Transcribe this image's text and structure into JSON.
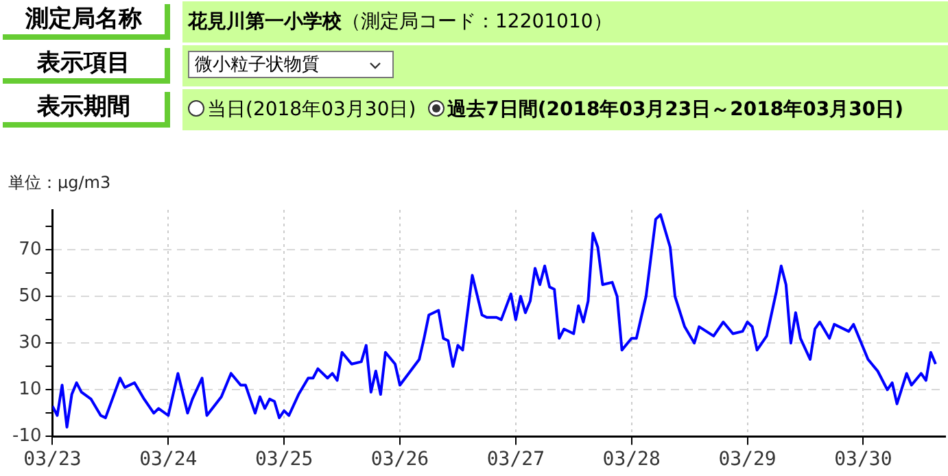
{
  "chart_data": {
    "type": "line",
    "title": "花見川第一小学校",
    "subtitle": "（測定局コード：12201010）",
    "annotations": [
      "測定局名称",
      "表示項目",
      "微小粒子状物質",
      "表示期間",
      "当日(2018年03月30日)",
      "過去7日間(2018年03月23日～2018年03月30日)"
    ],
    "ylabel": "単位：μg/m3",
    "x": [
      "2018-03-23T00:00",
      "2018-03-23T01:00",
      "2018-03-23T02:00",
      "2018-03-23T03:00",
      "2018-03-23T04:00",
      "2018-03-23T05:00",
      "2018-03-23T06:00",
      "2018-03-23T08:00",
      "2018-03-23T10:00",
      "2018-03-23T11:00",
      "2018-03-23T14:00",
      "2018-03-23T15:00",
      "2018-03-23T17:00",
      "2018-03-23T19:00",
      "2018-03-23T21:00",
      "2018-03-23T22:00",
      "2018-03-24T00:00",
      "2018-03-24T02:00",
      "2018-03-24T04:00",
      "2018-03-24T05:00",
      "2018-03-24T07:00",
      "2018-03-24T08:00",
      "2018-03-24T11:00",
      "2018-03-24T13:00",
      "2018-03-24T15:00",
      "2018-03-24T16:00",
      "2018-03-24T18:00",
      "2018-03-24T19:00",
      "2018-03-24T20:00",
      "2018-03-24T21:00",
      "2018-03-24T22:00",
      "2018-03-24T23:00",
      "2018-03-25T00:00",
      "2018-03-25T01:00",
      "2018-03-25T03:00",
      "2018-03-25T05:00",
      "2018-03-25T06:00",
      "2018-03-25T07:00",
      "2018-03-25T09:00",
      "2018-03-25T10:00",
      "2018-03-25T11:00",
      "2018-03-25T12:00",
      "2018-03-25T14:00",
      "2018-03-25T16:00",
      "2018-03-25T17:00",
      "2018-03-25T18:00",
      "2018-03-25T19:00",
      "2018-03-25T20:00",
      "2018-03-25T21:00",
      "2018-03-25T23:00",
      "2018-03-26T00:00",
      "2018-03-26T04:00",
      "2018-03-26T05:00",
      "2018-03-26T06:00",
      "2018-03-26T08:00",
      "2018-03-26T09:00",
      "2018-03-26T10:00",
      "2018-03-26T11:00",
      "2018-03-26T12:00",
      "2018-03-26T13:00",
      "2018-03-26T15:00",
      "2018-03-26T17:00",
      "2018-03-26T18:00",
      "2018-03-26T20:00",
      "2018-03-26T21:00",
      "2018-03-26T23:00",
      "2018-03-27T00:00",
      "2018-03-27T01:00",
      "2018-03-27T02:00",
      "2018-03-27T03:00",
      "2018-03-27T04:00",
      "2018-03-27T05:00",
      "2018-03-27T06:00",
      "2018-03-27T07:00",
      "2018-03-27T08:00",
      "2018-03-27T09:00",
      "2018-03-27T10:00",
      "2018-03-27T12:00",
      "2018-03-27T13:00",
      "2018-03-27T14:00",
      "2018-03-27T15:00",
      "2018-03-27T16:00",
      "2018-03-27T17:00",
      "2018-03-27T18:00",
      "2018-03-27T20:00",
      "2018-03-27T21:00",
      "2018-03-27T22:00",
      "2018-03-28T00:00",
      "2018-03-28T01:00",
      "2018-03-28T03:00",
      "2018-03-28T05:00",
      "2018-03-28T06:00",
      "2018-03-28T08:00",
      "2018-03-28T09:00",
      "2018-03-28T11:00",
      "2018-03-28T13:00",
      "2018-03-28T14:00",
      "2018-03-28T17:00",
      "2018-03-28T19:00",
      "2018-03-28T21:00",
      "2018-03-28T23:00",
      "2018-03-29T00:00",
      "2018-03-29T01:00",
      "2018-03-29T02:00",
      "2018-03-29T04:00",
      "2018-03-29T06:00",
      "2018-03-29T07:00",
      "2018-03-29T08:00",
      "2018-03-29T09:00",
      "2018-03-29T10:00",
      "2018-03-29T11:00",
      "2018-03-29T13:00",
      "2018-03-29T14:00",
      "2018-03-29T15:00",
      "2018-03-29T17:00",
      "2018-03-29T18:00",
      "2018-03-29T21:00",
      "2018-03-29T22:00",
      "2018-03-30T01:00",
      "2018-03-30T03:00",
      "2018-03-30T05:00",
      "2018-03-30T06:00",
      "2018-03-30T07:00",
      "2018-03-30T09:00",
      "2018-03-30T10:00",
      "2018-03-30T12:00",
      "2018-03-30T13:00",
      "2018-03-30T14:00",
      "2018-03-30T15:00"
    ],
    "series": [
      {
        "color": "#0000ff",
        "values": [
          3,
          -1,
          12,
          -6,
          8,
          13,
          9,
          6,
          -1,
          -2,
          15,
          11,
          13,
          6,
          0,
          2,
          -1,
          17,
          0,
          6,
          15,
          -1,
          7,
          17,
          12,
          12,
          0,
          7,
          2,
          6,
          5,
          -2,
          1,
          -1,
          8,
          15,
          15,
          19,
          15,
          17,
          14,
          26,
          21,
          22,
          29,
          9,
          18,
          8,
          26,
          21,
          12,
          23,
          32,
          42,
          44,
          32,
          31,
          20,
          29,
          27,
          59,
          42,
          41,
          41,
          40,
          51,
          40,
          50,
          43,
          48,
          62,
          55,
          63,
          54,
          53,
          32,
          36,
          34,
          46,
          39,
          48,
          77,
          71,
          55,
          56,
          50,
          27,
          32,
          32,
          50,
          83,
          85,
          71,
          50,
          37,
          30,
          37,
          33,
          39,
          34,
          35,
          39,
          37,
          27,
          33,
          52,
          63,
          55,
          30,
          43,
          32,
          23,
          36,
          39,
          32,
          38,
          35,
          38,
          23,
          18,
          10,
          13,
          4,
          17,
          12,
          17,
          14,
          26,
          21
        ]
      }
    ],
    "xlim": [
      "2018-03-23T00:00",
      "2018-03-30T17:00"
    ],
    "xticks": [
      {
        "value": "2018-03-23",
        "label": "03/23"
      },
      {
        "value": "2018-03-24",
        "label": "03/24"
      },
      {
        "value": "2018-03-25",
        "label": "03/25"
      },
      {
        "value": "2018-03-26",
        "label": "03/26"
      },
      {
        "value": "2018-03-27",
        "label": "03/27"
      },
      {
        "value": "2018-03-28",
        "label": "03/28"
      },
      {
        "value": "2018-03-29",
        "label": "03/29"
      },
      {
        "value": "2018-03-30",
        "label": "03/30"
      }
    ],
    "ylim": [
      -10,
      87
    ],
    "yticks": [
      -10,
      {
        "value": 0,
        "label": null
      },
      10,
      {
        "value": 20,
        "label": null
      },
      30,
      {
        "value": 40,
        "label": null
      },
      50,
      {
        "value": 60,
        "label": null
      },
      70,
      {
        "value": 80,
        "label": null
      }
    ],
    "grid": true,
    "legend": false,
    "marker": "none",
    "line_style": "solid"
  }
}
